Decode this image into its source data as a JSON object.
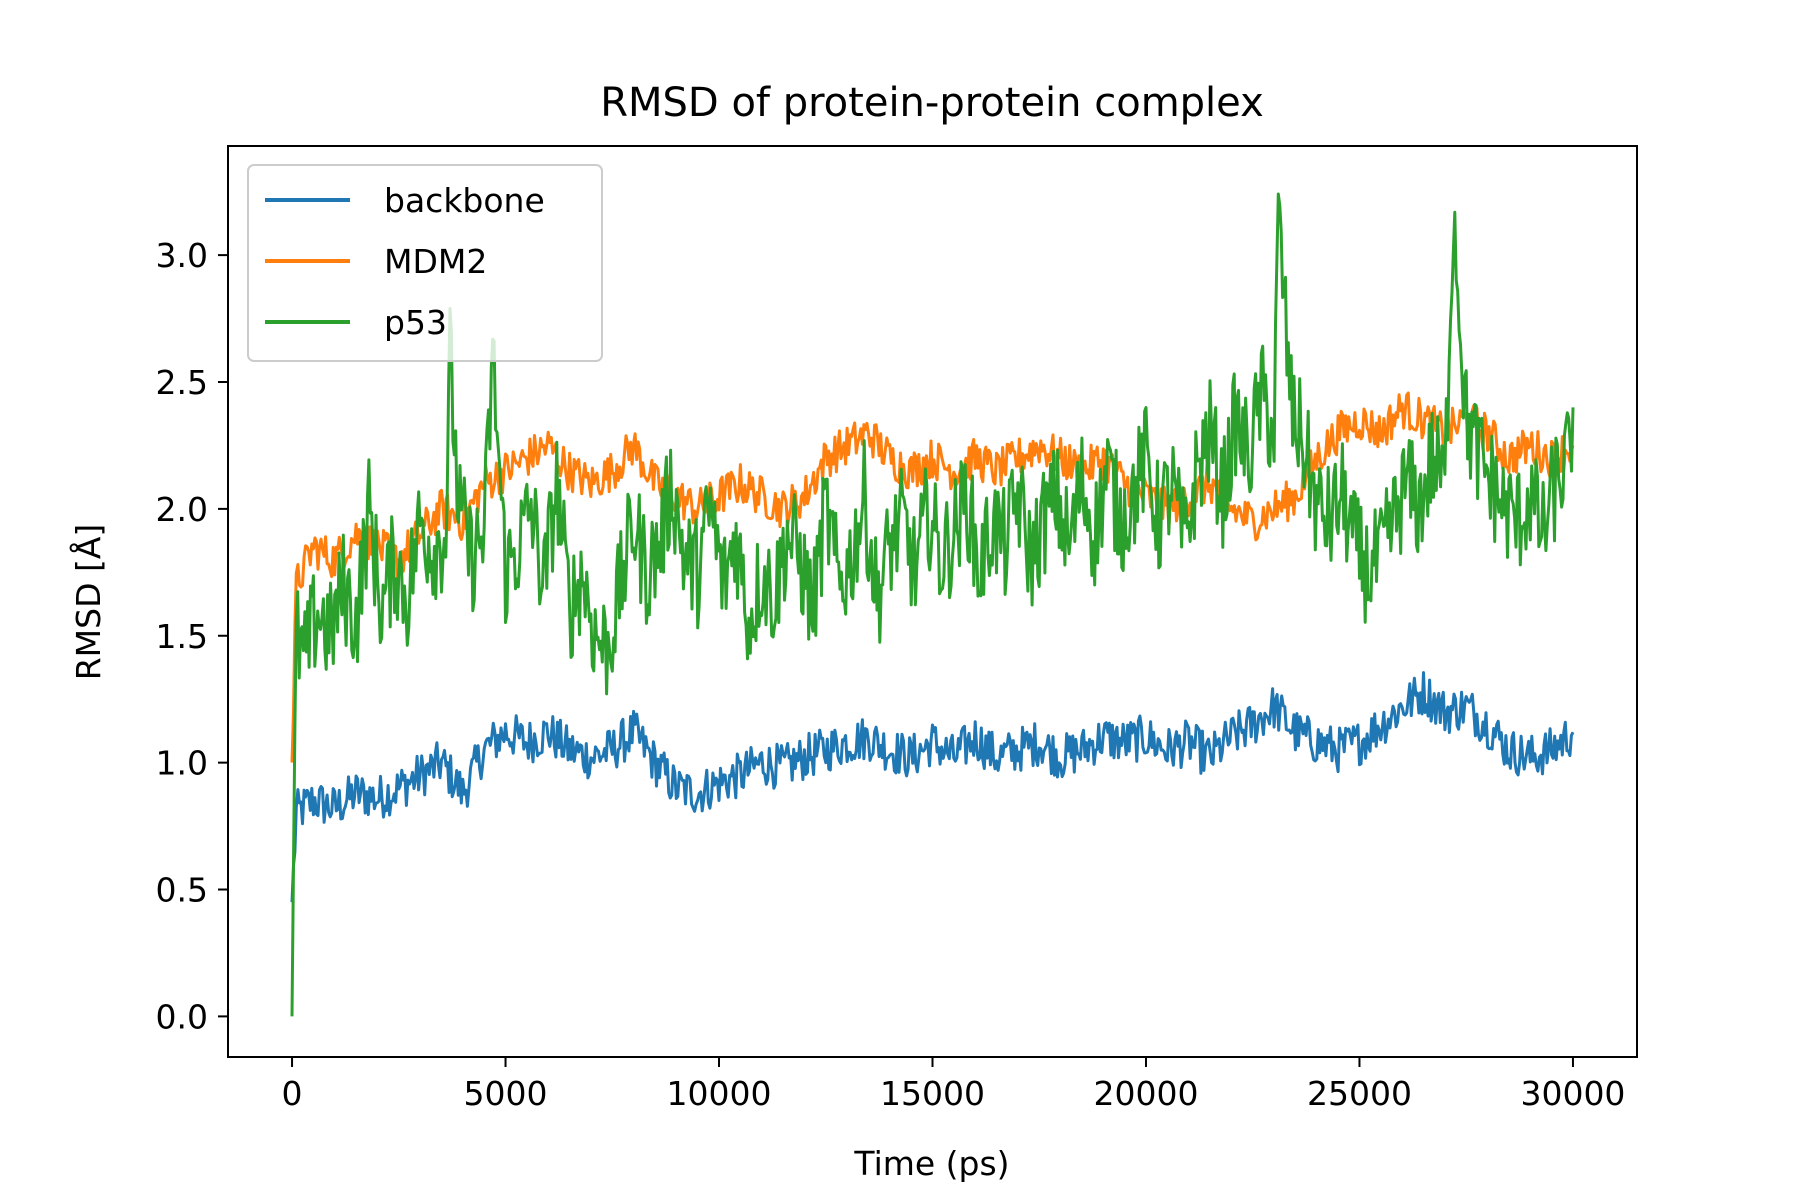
{
  "chart_data": {
    "type": "line",
    "title": "RMSD of protein-protein complex",
    "xlabel": "Time (ps)",
    "ylabel": "RMSD [Å]",
    "xlim": [
      -1500,
      31500
    ],
    "ylim": [
      -0.16,
      3.43
    ],
    "xticks": [
      0,
      5000,
      10000,
      15000,
      20000,
      25000,
      30000
    ],
    "xtick_labels": [
      "0",
      "5000",
      "10000",
      "15000",
      "20000",
      "25000",
      "30000"
    ],
    "yticks": [
      0.0,
      0.5,
      1.0,
      1.5,
      2.0,
      2.5,
      3.0
    ],
    "ytick_labels": [
      "0.0",
      "0.5",
      "1.0",
      "1.5",
      "2.0",
      "2.5",
      "3.0"
    ],
    "grid": false,
    "legend": "top-left",
    "series": [
      {
        "name": "backbone",
        "color": "#1f77b4",
        "x": [
          0,
          100,
          500,
          1000,
          1500,
          2000,
          2500,
          3000,
          3500,
          4000,
          4500,
          5000,
          5500,
          6000,
          6500,
          7000,
          7500,
          8000,
          8500,
          9000,
          9500,
          10000,
          10500,
          11000,
          11500,
          12000,
          12500,
          13000,
          13500,
          14000,
          14500,
          15000,
          15500,
          16000,
          16500,
          17000,
          17500,
          18000,
          18500,
          19000,
          19500,
          20000,
          20500,
          21000,
          21500,
          22000,
          22500,
          23000,
          23500,
          24000,
          24500,
          25000,
          25500,
          26000,
          26500,
          27000,
          27500,
          28000,
          28500,
          29000,
          29500,
          30000
        ],
        "values": [
          0.45,
          0.8,
          0.85,
          0.82,
          0.88,
          0.86,
          0.9,
          0.95,
          1.0,
          0.88,
          1.05,
          1.12,
          1.08,
          1.12,
          1.05,
          1.02,
          1.05,
          1.12,
          1.0,
          0.9,
          0.88,
          0.92,
          0.95,
          1.0,
          0.98,
          1.02,
          1.05,
          1.08,
          1.1,
          1.05,
          1.02,
          1.08,
          1.02,
          1.1,
          1.02,
          1.05,
          1.08,
          1.02,
          1.05,
          1.1,
          1.08,
          1.1,
          1.05,
          1.08,
          1.02,
          1.1,
          1.15,
          1.22,
          1.12,
          1.08,
          1.05,
          1.08,
          1.15,
          1.22,
          1.28,
          1.2,
          1.22,
          1.15,
          1.05,
          1.02,
          1.05,
          1.12
        ]
      },
      {
        "name": "MDM2",
        "color": "#ff7f0e",
        "x": [
          0,
          100,
          500,
          1000,
          1500,
          2000,
          2500,
          3000,
          3500,
          4000,
          4500,
          5000,
          5500,
          6000,
          6500,
          7000,
          7500,
          8000,
          8500,
          9000,
          9500,
          10000,
          10500,
          11000,
          11500,
          12000,
          12500,
          13000,
          13500,
          14000,
          14500,
          15000,
          15500,
          16000,
          16500,
          17000,
          17500,
          18000,
          18500,
          19000,
          19500,
          20000,
          20500,
          21000,
          21500,
          22000,
          22500,
          23000,
          23500,
          24000,
          24500,
          25000,
          25500,
          26000,
          26500,
          27000,
          27500,
          28000,
          28500,
          29000,
          29500,
          30000
        ],
        "values": [
          1.0,
          1.7,
          1.85,
          1.8,
          1.9,
          1.85,
          1.8,
          1.9,
          2.0,
          1.95,
          2.1,
          2.15,
          2.2,
          2.25,
          2.15,
          2.1,
          2.15,
          2.25,
          2.1,
          2.05,
          2.0,
          2.05,
          2.1,
          2.05,
          2.0,
          2.05,
          2.2,
          2.25,
          2.3,
          2.2,
          2.15,
          2.2,
          2.15,
          2.2,
          2.15,
          2.2,
          2.25,
          2.2,
          2.15,
          2.2,
          2.1,
          2.05,
          2.0,
          2.05,
          2.1,
          2.0,
          1.95,
          2.0,
          2.05,
          2.2,
          2.3,
          2.35,
          2.3,
          2.4,
          2.35,
          2.3,
          2.35,
          2.3,
          2.2,
          2.25,
          2.2,
          2.25
        ]
      },
      {
        "name": "p53",
        "color": "#2ca02c",
        "x": [
          0,
          100,
          300,
          600,
          900,
          1200,
          1500,
          1800,
          2100,
          2400,
          2700,
          3000,
          3300,
          3600,
          3700,
          3900,
          4200,
          4500,
          4700,
          5000,
          5300,
          5600,
          5900,
          6200,
          6500,
          6800,
          7100,
          7400,
          7700,
          8000,
          8300,
          8600,
          8900,
          9200,
          9500,
          9800,
          10100,
          10400,
          10700,
          11000,
          11300,
          11600,
          11900,
          12200,
          12500,
          12800,
          13100,
          13400,
          13700,
          14000,
          14300,
          14600,
          14900,
          15200,
          15500,
          15800,
          16100,
          16400,
          16700,
          17000,
          17300,
          17600,
          17900,
          18200,
          18500,
          18800,
          19100,
          19400,
          19700,
          20000,
          20300,
          20600,
          20900,
          21200,
          21500,
          21800,
          22100,
          22400,
          22700,
          23000,
          23100,
          23400,
          23700,
          24000,
          24300,
          24600,
          24900,
          25200,
          25500,
          25800,
          26100,
          26400,
          26700,
          27000,
          27200,
          27500,
          27800,
          28100,
          28400,
          28700,
          29000,
          29300,
          29600,
          29900,
          30000
        ],
        "values": [
          0.0,
          1.5,
          1.4,
          1.6,
          1.5,
          1.7,
          1.55,
          2.0,
          1.6,
          1.8,
          1.65,
          1.95,
          1.85,
          1.9,
          2.6,
          2.0,
          1.8,
          1.9,
          2.6,
          1.75,
          1.85,
          2.0,
          1.7,
          2.1,
          1.6,
          1.75,
          1.5,
          1.45,
          1.7,
          1.95,
          1.75,
          1.85,
          2.1,
          1.8,
          1.75,
          2.0,
          1.7,
          1.9,
          1.55,
          1.75,
          1.65,
          1.9,
          1.8,
          1.6,
          2.0,
          1.7,
          1.8,
          2.05,
          1.65,
          1.85,
          1.95,
          1.75,
          2.0,
          1.8,
          1.9,
          2.05,
          1.75,
          1.95,
          1.85,
          2.05,
          1.8,
          1.95,
          2.05,
          1.85,
          2.1,
          1.9,
          2.15,
          1.95,
          2.05,
          2.2,
          1.95,
          2.1,
          1.85,
          2.15,
          2.3,
          2.05,
          2.35,
          2.2,
          2.45,
          2.3,
          3.15,
          2.4,
          2.25,
          2.0,
          1.95,
          2.05,
          1.85,
          1.75,
          1.8,
          1.95,
          2.1,
          2.0,
          2.2,
          2.1,
          3.2,
          2.35,
          2.2,
          2.1,
          2.0,
          1.95,
          2.05,
          1.9,
          2.1,
          2.2,
          2.4
        ]
      }
    ]
  }
}
